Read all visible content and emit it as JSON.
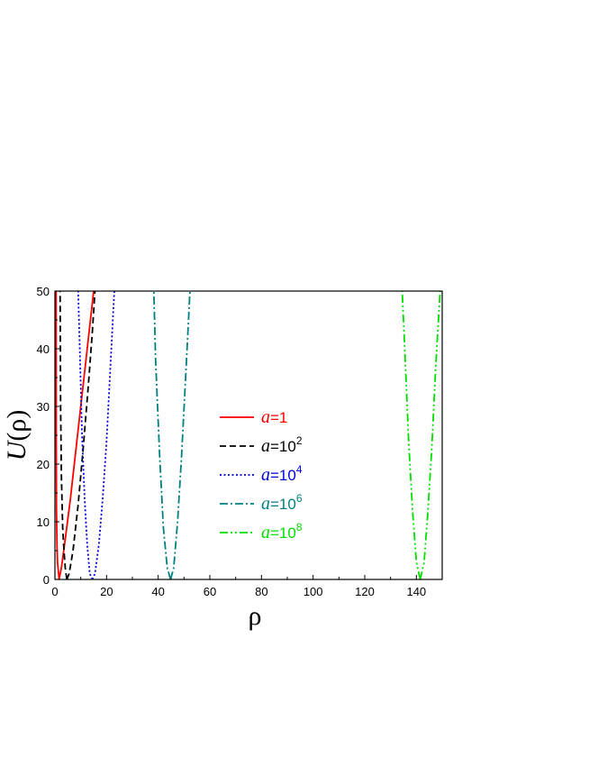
{
  "chart_data": {
    "type": "line",
    "xlabel": "ρ",
    "ylabel": "U(ρ)",
    "ylabel_var": "U",
    "ylabel_arg": "(ρ)",
    "xlim": [
      0,
      150
    ],
    "ylim": [
      0,
      50
    ],
    "xticks": [
      0,
      20,
      40,
      60,
      80,
      100,
      120,
      140
    ],
    "yticks": [
      0,
      10,
      20,
      30,
      40,
      50
    ],
    "legend_position": "center",
    "series": [
      {
        "name": "a=1",
        "var": "a",
        "value": "=1",
        "sup": "",
        "color": "#ff0000",
        "dash": "",
        "x": [
          1.6,
          1.0,
          0.8,
          0.6,
          0.5,
          0.45,
          1.6,
          2.5,
          4.0,
          6.0,
          8.0,
          10.0,
          12.0,
          14.0,
          15.0
        ],
        "y": [
          0,
          3,
          6,
          12,
          25,
          50,
          0,
          2,
          7,
          14,
          22,
          30,
          38,
          46,
          50
        ]
      },
      {
        "name": "a=10^2",
        "var": "a",
        "value": "=10",
        "sup": "2",
        "color": "#000000",
        "dash": "7,4",
        "x": [
          4.6,
          4.0,
          3.5,
          3.0,
          2.5,
          2.2,
          2.0,
          4.6,
          5.5,
          7.0,
          9.0,
          11.0,
          13.0,
          14.5,
          15.5
        ],
        "y": [
          0,
          2,
          5,
          9,
          18,
          30,
          50,
          0,
          1,
          5,
          13,
          23,
          34,
          43,
          50
        ]
      },
      {
        "name": "a=10^4",
        "var": "a",
        "value": "=10",
        "sup": "4",
        "color": "#0000dd",
        "dash": "2,2.5",
        "x": [
          14.5,
          13.5,
          12.5,
          11.5,
          10.5,
          9.8,
          9.0,
          14.5,
          15.5,
          17.0,
          18.5,
          20.0,
          21.5,
          23.0
        ],
        "y": [
          0,
          1,
          6,
          14,
          25,
          37,
          50,
          0,
          1,
          6,
          14,
          24,
          37,
          50
        ]
      },
      {
        "name": "a=10^6",
        "var": "a",
        "value": "=10",
        "sup": "6",
        "color": "#008080",
        "dash": "9,3,2,3",
        "x": [
          44.8,
          43.5,
          42.0,
          40.5,
          39.0,
          38.3,
          44.8,
          46.0,
          47.5,
          49.0,
          50.5,
          52.3
        ],
        "y": [
          0,
          2,
          9,
          22,
          38,
          50,
          0,
          2,
          10,
          21,
          34,
          50
        ]
      },
      {
        "name": "a=10^8",
        "var": "a",
        "value": "=10",
        "sup": "8",
        "color": "#00e000",
        "dash": "9,3,2,3,2,3",
        "x": [
          141.5,
          140.0,
          138.5,
          137.0,
          135.5,
          134.5,
          141.5,
          143.0,
          144.5,
          146.0,
          147.5,
          149.2
        ],
        "y": [
          0,
          3,
          12,
          24,
          40,
          50,
          0,
          3,
          12,
          23,
          37,
          50
        ]
      }
    ]
  }
}
